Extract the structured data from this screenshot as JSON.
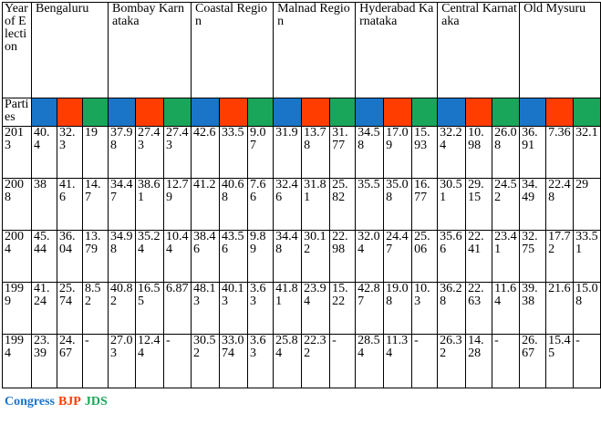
{
  "table": {
    "year_header": "Year of Election",
    "regions": [
      "Bengaluru",
      "Bombay Karnataka",
      "Coastal Region",
      "Malnad Region",
      "Hyderabad Karnataka",
      "Central Karnataka",
      "Old Mysuru"
    ],
    "parties_label": "Parties",
    "party_colors": [
      "#1a74c8",
      "#ff3d00",
      "#1aa65a"
    ],
    "rows": [
      {
        "year": "2013",
        "values": [
          "40.4",
          "32.3",
          "19",
          "37.98",
          "27.43",
          "27.43",
          "42.6",
          "33.5",
          "9.07",
          "31.9",
          "13.78",
          "31.77",
          "34.58",
          "17.09",
          "15.93",
          "32.24",
          "10.98",
          "26.08",
          "36.91",
          "7.36",
          "32.1"
        ]
      },
      {
        "year": "2008",
        "values": [
          "38",
          "41.6",
          "14.7",
          "34.47",
          "38.61",
          "12.79",
          "41.2",
          "40.68",
          "7.66",
          "32.46",
          "31.81",
          "25.82",
          "35.5",
          "35.08",
          "16.77",
          "30.51",
          "29.15",
          "24.52",
          "34.49",
          "22.48",
          "29"
        ]
      },
      {
        "year": "2004",
        "values": [
          "45.44",
          "36.04",
          "13.79",
          "34.98",
          "35.24",
          "10.44",
          "38.46",
          "43.56",
          "9.89",
          "34.48",
          "30.12",
          "22.98",
          "32.04",
          "24.47",
          "25.06",
          "35.66",
          "22.41",
          "23.41",
          "32.75",
          "17.72",
          "33.51"
        ]
      },
      {
        "year": "1999",
        "values": [
          "41.24",
          "25.74",
          "8.52",
          "40.82",
          "16.55",
          "6.87",
          "48.13",
          "40.13",
          "3.63",
          "41.81",
          "23.94",
          "15.22",
          "42.87",
          "19.08",
          "10.3",
          "36.28",
          "22.63",
          "11.64",
          "39.38",
          "21.6",
          "15.08"
        ]
      },
      {
        "year": "1994",
        "values": [
          "23.39",
          "24.67",
          "-",
          "27.03",
          "12.44",
          "-",
          "30.52",
          "33.074",
          "3.63",
          "25.84",
          "22.32",
          "-",
          "28.54",
          "11.34",
          "-",
          "26.32",
          "14.28",
          "-",
          "26.67",
          "15.45",
          "-"
        ]
      }
    ]
  },
  "legend": {
    "items": [
      {
        "label": "Congress",
        "color": "#1a74c8"
      },
      {
        "label": "BJP",
        "color": "#ff3d00"
      },
      {
        "label": "JDS",
        "color": "#1aa65a"
      }
    ]
  }
}
